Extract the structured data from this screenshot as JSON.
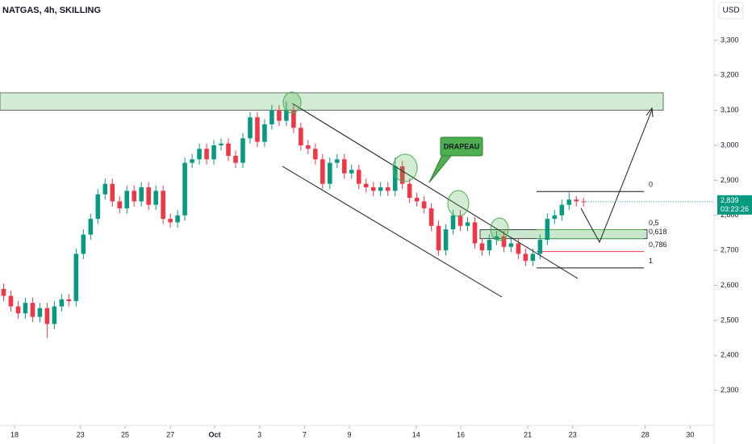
{
  "chart_data": {
    "type": "candlestick",
    "title": "NATGAS, 4h, SKILLING",
    "currency": "USD",
    "up_color": "#089981",
    "down_color": "#f23645",
    "open": [
      2590,
      2570,
      2540,
      2520,
      2550,
      2510,
      2535,
      2490,
      2540,
      2560,
      2555,
      2690,
      2745,
      2790,
      2860,
      2890,
      2840,
      2820,
      2870,
      2840,
      2880,
      2830,
      2870,
      2790,
      2780,
      2800,
      2950,
      2960,
      2990,
      2960,
      3000,
      3005,
      2970,
      2950,
      3020,
      3080,
      3010,
      3060,
      3100,
      3070,
      3100,
      3050,
      3000,
      2990,
      2960,
      2890,
      2950,
      2960,
      2920,
      2930,
      2890,
      2880,
      2870,
      2880,
      2870,
      2940,
      2890,
      2850,
      2840,
      2820,
      2770,
      2700,
      2760,
      2800,
      2770,
      2780,
      2720,
      2700,
      2730,
      2740,
      2710,
      2720,
      2690,
      2670,
      2690,
      2730,
      2790,
      2800,
      2830,
      2845,
      2840
    ],
    "high": [
      2605,
      2585,
      2555,
      2565,
      2565,
      2550,
      2550,
      2555,
      2575,
      2575,
      2705,
      2760,
      2805,
      2875,
      2905,
      2905,
      2855,
      2885,
      2885,
      2895,
      2895,
      2885,
      2885,
      2805,
      2815,
      2965,
      2975,
      3005,
      3005,
      3015,
      3020,
      3020,
      2985,
      3035,
      3095,
      3095,
      3075,
      3115,
      3115,
      3125,
      3115,
      3065,
      3015,
      3005,
      2975,
      2965,
      2975,
      2975,
      2945,
      2945,
      2905,
      2895,
      2895,
      2895,
      2965,
      2955,
      2905,
      2865,
      2855,
      2835,
      2785,
      2775,
      2815,
      2815,
      2795,
      2795,
      2735,
      2745,
      2755,
      2755,
      2735,
      2735,
      2705,
      2705,
      2745,
      2805,
      2815,
      2845,
      2865,
      2855,
      2850
    ],
    "low": [
      2555,
      2525,
      2505,
      2505,
      2495,
      2495,
      2450,
      2475,
      2525,
      2540,
      2540,
      2675,
      2730,
      2775,
      2845,
      2825,
      2805,
      2805,
      2825,
      2825,
      2815,
      2815,
      2775,
      2765,
      2765,
      2785,
      2935,
      2945,
      2945,
      2945,
      2985,
      2955,
      2935,
      2935,
      3005,
      2995,
      2995,
      3045,
      3055,
      3055,
      3035,
      2985,
      2975,
      2945,
      2875,
      2875,
      2935,
      2905,
      2905,
      2875,
      2865,
      2855,
      2855,
      2855,
      2855,
      2875,
      2835,
      2825,
      2805,
      2755,
      2685,
      2685,
      2745,
      2755,
      2755,
      2705,
      2685,
      2685,
      2715,
      2695,
      2695,
      2675,
      2655,
      2655,
      2675,
      2715,
      2775,
      2785,
      2815,
      2825,
      2825
    ],
    "close": [
      2570,
      2540,
      2520,
      2550,
      2510,
      2535,
      2490,
      2540,
      2560,
      2555,
      2690,
      2745,
      2790,
      2860,
      2890,
      2840,
      2820,
      2870,
      2840,
      2880,
      2830,
      2870,
      2790,
      2780,
      2800,
      2950,
      2960,
      2990,
      2960,
      3000,
      3005,
      2970,
      2950,
      3020,
      3080,
      3010,
      3060,
      3100,
      3070,
      3100,
      3050,
      3000,
      2990,
      2960,
      2890,
      2950,
      2960,
      2920,
      2930,
      2890,
      2880,
      2870,
      2880,
      2870,
      2940,
      2890,
      2850,
      2840,
      2820,
      2770,
      2700,
      2760,
      2800,
      2770,
      2780,
      2720,
      2700,
      2730,
      2740,
      2710,
      2720,
      2690,
      2670,
      2690,
      2730,
      2790,
      2800,
      2830,
      2845,
      2840,
      2839
    ],
    "xlim": [
      -0.5,
      98
    ],
    "xticks": [
      {
        "value": 1.5,
        "label": "18"
      },
      {
        "value": 10.6,
        "label": "23"
      },
      {
        "value": 16.75,
        "label": "25"
      },
      {
        "value": 23,
        "label": "27"
      },
      {
        "value": 29.1,
        "label": "Oct"
      },
      {
        "value": 35.3,
        "label": "3"
      },
      {
        "value": 41.5,
        "label": "7"
      },
      {
        "value": 47.7,
        "label": "9"
      },
      {
        "value": 56.9,
        "label": "14"
      },
      {
        "value": 63.05,
        "label": "16"
      },
      {
        "value": 72.3,
        "label": "21"
      },
      {
        "value": 78.5,
        "label": "23"
      },
      {
        "value": 88.5,
        "label": "28"
      },
      {
        "value": 94.7,
        "label": "30"
      }
    ],
    "ylim": [
      2200,
      3415
    ],
    "yticks": [
      {
        "value": 2300,
        "label": "2,300"
      },
      {
        "value": 2400,
        "label": "2,400"
      },
      {
        "value": 2500,
        "label": "2,500"
      },
      {
        "value": 2600,
        "label": "2,600"
      },
      {
        "value": 2700,
        "label": "2,700"
      },
      {
        "value": 2800,
        "label": "2,800"
      },
      {
        "value": 2900,
        "label": "2,900"
      },
      {
        "value": 3000,
        "label": "3,000"
      },
      {
        "value": 3100,
        "label": "3,100"
      },
      {
        "value": 3200,
        "label": "3,200"
      },
      {
        "value": 3300,
        "label": "3,300"
      }
    ],
    "last_price": {
      "value": 2839,
      "label": "2,839",
      "countdown": "03:23:26"
    },
    "zone": {
      "low": 3100,
      "high": 3150
    },
    "fib": {
      "high": 2868,
      "low": 2650,
      "levels": [
        {
          "value": 0,
          "label": "0"
        },
        {
          "value": 0.5,
          "label": "0,5"
        },
        {
          "value": 0.618,
          "label": "0,618"
        },
        {
          "value": 0.786,
          "label": "0,786"
        },
        {
          "value": 1,
          "label": "1"
        }
      ]
    },
    "annotation": "DRAPEAU"
  }
}
